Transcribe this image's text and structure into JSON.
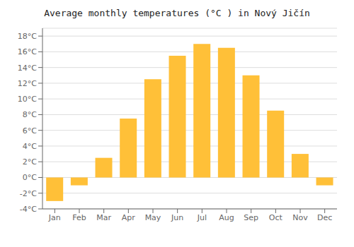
{
  "chart_data": {
    "type": "bar",
    "title": "Average monthly temperatures (°C ) in Nový Jičín",
    "categories": [
      "Jan",
      "Feb",
      "Mar",
      "Apr",
      "May",
      "Jun",
      "Jul",
      "Aug",
      "Sep",
      "Oct",
      "Nov",
      "Dec"
    ],
    "values": [
      -3.0,
      -1.0,
      2.5,
      7.5,
      12.5,
      15.5,
      17.0,
      16.5,
      13.0,
      8.5,
      3.0,
      -1.0
    ],
    "color": "#FFC038",
    "ylim": [
      -4,
      19
    ],
    "yticks": [
      {
        "value": -4,
        "label": "-4°C"
      },
      {
        "value": -2,
        "label": "-2°C"
      },
      {
        "value": 0,
        "label": "0°C"
      },
      {
        "value": 2,
        "label": "2°C"
      },
      {
        "value": 4,
        "label": "4°C"
      },
      {
        "value": 6,
        "label": "6°C"
      },
      {
        "value": 8,
        "label": "8°C"
      },
      {
        "value": 10,
        "label": "10°C"
      },
      {
        "value": 12,
        "label": "12°C"
      },
      {
        "value": 14,
        "label": "14°C"
      },
      {
        "value": 16,
        "label": "16°C"
      },
      {
        "value": 18,
        "label": "18°C"
      }
    ],
    "grid": true
  }
}
